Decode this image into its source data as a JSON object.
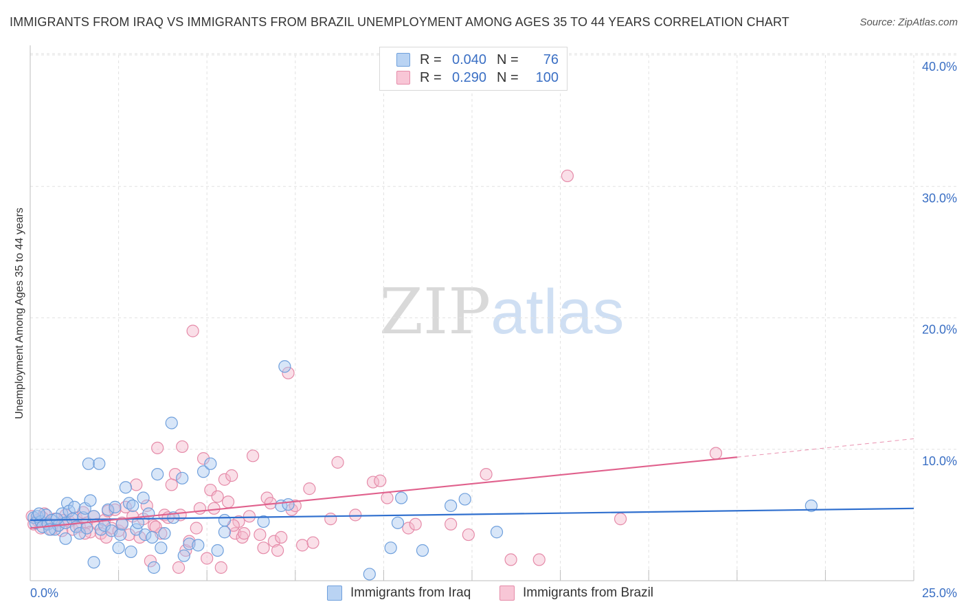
{
  "header": {
    "title": "IMMIGRANTS FROM IRAQ VS IMMIGRANTS FROM BRAZIL UNEMPLOYMENT AMONG AGES 35 TO 44 YEARS CORRELATION CHART",
    "source": "Source: ZipAtlas.com"
  },
  "watermark": {
    "zip": "ZIP",
    "atlas": "atlas"
  },
  "legend": {
    "iraq": {
      "r_label": "R =",
      "r_value": "0.040",
      "n_label": "N =",
      "n_value": "76"
    },
    "brazil": {
      "r_label": "R =",
      "r_value": "0.290",
      "n_label": "N =",
      "n_value": "100"
    }
  },
  "colors": {
    "iraq_fill": "#a9c8f0",
    "iraq_stroke": "#6e9fdc",
    "iraq_line": "#2f6fce",
    "brazil_fill": "#f5b8cb",
    "brazil_stroke": "#e58aa8",
    "brazil_line": "#e0608c",
    "tick_label": "#3a6fc4",
    "grid": "#e2e2e2"
  },
  "chart_data": {
    "type": "scatter",
    "title": "IMMIGRANTS FROM IRAQ VS IMMIGRANTS FROM BRAZIL UNEMPLOYMENT AMONG AGES 35 TO 44 YEARS CORRELATION CHART",
    "xlabel": "",
    "ylabel": "Unemployment Among Ages 35 to 44 years",
    "xlim": [
      0,
      25
    ],
    "ylim": [
      0,
      40
    ],
    "x_tick_labels": [
      "0.0%",
      "25.0%"
    ],
    "y_ticks": [
      10,
      20,
      30,
      40
    ],
    "y_tick_labels": [
      "10.0%",
      "20.0%",
      "30.0%",
      "40.0%"
    ],
    "grid": true,
    "legend_position": "top-center",
    "series": [
      {
        "name": "Immigrants from Iraq",
        "r": 0.04,
        "n": 76,
        "trend": {
          "x": [
            0,
            25
          ],
          "y": [
            4.6,
            5.5
          ]
        },
        "points": [
          [
            0.1,
            4.8
          ],
          [
            0.15,
            4.4
          ],
          [
            0.2,
            4.9
          ],
          [
            0.3,
            4.5
          ],
          [
            0.35,
            4.1
          ],
          [
            0.45,
            5.0
          ],
          [
            0.5,
            4.3
          ],
          [
            0.6,
            4.6
          ],
          [
            0.7,
            3.9
          ],
          [
            0.8,
            4.2
          ],
          [
            0.9,
            5.1
          ],
          [
            1.0,
            4.4
          ],
          [
            1.0,
            3.2
          ],
          [
            1.05,
            5.9
          ],
          [
            1.1,
            5.3
          ],
          [
            1.2,
            4.7
          ],
          [
            1.25,
            5.6
          ],
          [
            1.3,
            4.1
          ],
          [
            1.4,
            3.6
          ],
          [
            1.5,
            4.8
          ],
          [
            1.55,
            5.5
          ],
          [
            1.65,
            8.9
          ],
          [
            1.7,
            6.1
          ],
          [
            1.8,
            4.9
          ],
          [
            1.8,
            1.4
          ],
          [
            1.95,
            8.9
          ],
          [
            2.0,
            3.9
          ],
          [
            2.1,
            4.2
          ],
          [
            2.2,
            5.4
          ],
          [
            2.3,
            3.8
          ],
          [
            2.4,
            5.6
          ],
          [
            2.5,
            2.5
          ],
          [
            2.55,
            3.5
          ],
          [
            2.6,
            4.3
          ],
          [
            2.7,
            7.1
          ],
          [
            2.8,
            5.9
          ],
          [
            2.85,
            2.2
          ],
          [
            2.9,
            5.7
          ],
          [
            3.0,
            3.9
          ],
          [
            3.2,
            6.3
          ],
          [
            3.25,
            3.5
          ],
          [
            3.35,
            5.1
          ],
          [
            3.45,
            3.3
          ],
          [
            3.5,
            1.0
          ],
          [
            3.6,
            8.1
          ],
          [
            3.7,
            2.5
          ],
          [
            3.8,
            3.6
          ],
          [
            4.0,
            12.0
          ],
          [
            4.05,
            4.8
          ],
          [
            4.3,
            7.8
          ],
          [
            4.35,
            1.9
          ],
          [
            4.5,
            2.8
          ],
          [
            4.75,
            2.7
          ],
          [
            4.9,
            8.3
          ],
          [
            5.1,
            8.9
          ],
          [
            5.3,
            2.3
          ],
          [
            5.5,
            4.6
          ],
          [
            5.5,
            3.7
          ],
          [
            6.6,
            4.5
          ],
          [
            7.1,
            5.7
          ],
          [
            7.2,
            16.3
          ],
          [
            7.3,
            5.8
          ],
          [
            9.6,
            0.5
          ],
          [
            10.2,
            2.5
          ],
          [
            10.4,
            4.4
          ],
          [
            10.5,
            6.3
          ],
          [
            11.1,
            2.3
          ],
          [
            11.9,
            5.7
          ],
          [
            12.3,
            6.2
          ],
          [
            13.2,
            3.7
          ],
          [
            22.1,
            5.7
          ],
          [
            0.25,
            5.1
          ],
          [
            0.55,
            3.9
          ],
          [
            0.75,
            4.7
          ],
          [
            1.6,
            4.0
          ],
          [
            3.05,
            4.4
          ]
        ]
      },
      {
        "name": "Immigrants from Brazil",
        "r": 0.29,
        "n": 100,
        "trend": {
          "x": [
            0,
            20
          ],
          "y": [
            4.0,
            9.4
          ]
        },
        "trend_dashed": {
          "x": [
            20,
            25
          ],
          "y": [
            9.4,
            10.8
          ]
        },
        "points": [
          [
            0.05,
            4.9
          ],
          [
            0.1,
            4.3
          ],
          [
            0.2,
            4.6
          ],
          [
            0.3,
            4.0
          ],
          [
            0.4,
            5.1
          ],
          [
            0.5,
            4.4
          ],
          [
            0.6,
            3.9
          ],
          [
            0.7,
            4.7
          ],
          [
            0.8,
            4.2
          ],
          [
            0.9,
            3.8
          ],
          [
            1.0,
            5.0
          ],
          [
            1.1,
            4.5
          ],
          [
            1.2,
            3.9
          ],
          [
            1.3,
            4.8
          ],
          [
            1.4,
            4.1
          ],
          [
            1.5,
            5.2
          ],
          [
            1.6,
            4.4
          ],
          [
            1.7,
            3.7
          ],
          [
            1.8,
            4.9
          ],
          [
            1.9,
            4.3
          ],
          [
            2.0,
            3.6
          ],
          [
            2.1,
            4.6
          ],
          [
            2.2,
            5.3
          ],
          [
            2.3,
            4.0
          ],
          [
            2.4,
            5.4
          ],
          [
            2.5,
            3.8
          ],
          [
            2.6,
            4.4
          ],
          [
            2.7,
            5.6
          ],
          [
            2.8,
            3.5
          ],
          [
            2.9,
            4.9
          ],
          [
            3.0,
            7.3
          ],
          [
            3.1,
            3.3
          ],
          [
            3.2,
            4.7
          ],
          [
            3.3,
            5.7
          ],
          [
            3.4,
            1.5
          ],
          [
            3.5,
            4.2
          ],
          [
            3.6,
            10.1
          ],
          [
            3.7,
            3.6
          ],
          [
            3.8,
            5.0
          ],
          [
            3.9,
            4.8
          ],
          [
            4.0,
            7.3
          ],
          [
            4.1,
            8.1
          ],
          [
            4.2,
            1.0
          ],
          [
            4.3,
            10.2
          ],
          [
            4.4,
            2.3
          ],
          [
            4.5,
            3.0
          ],
          [
            4.6,
            19.0
          ],
          [
            4.7,
            4.0
          ],
          [
            4.8,
            5.5
          ],
          [
            4.9,
            9.3
          ],
          [
            5.0,
            1.7
          ],
          [
            5.1,
            6.9
          ],
          [
            5.2,
            5.5
          ],
          [
            5.3,
            6.4
          ],
          [
            5.4,
            1.0
          ],
          [
            5.5,
            7.7
          ],
          [
            5.6,
            6.0
          ],
          [
            5.7,
            8.0
          ],
          [
            5.8,
            3.6
          ],
          [
            5.9,
            4.5
          ],
          [
            6.0,
            3.3
          ],
          [
            6.2,
            4.9
          ],
          [
            6.3,
            9.5
          ],
          [
            6.5,
            3.5
          ],
          [
            6.6,
            2.5
          ],
          [
            6.7,
            6.3
          ],
          [
            6.8,
            5.9
          ],
          [
            6.9,
            3.0
          ],
          [
            7.0,
            2.3
          ],
          [
            7.1,
            3.3
          ],
          [
            7.3,
            15.8
          ],
          [
            7.4,
            5.4
          ],
          [
            7.5,
            5.7
          ],
          [
            7.7,
            2.7
          ],
          [
            7.9,
            7.0
          ],
          [
            8.0,
            2.9
          ],
          [
            8.5,
            4.7
          ],
          [
            8.7,
            9.0
          ],
          [
            9.2,
            5.0
          ],
          [
            9.7,
            7.5
          ],
          [
            9.9,
            7.6
          ],
          [
            10.1,
            6.3
          ],
          [
            10.7,
            4.0
          ],
          [
            10.9,
            4.3
          ],
          [
            11.9,
            4.3
          ],
          [
            12.4,
            3.5
          ],
          [
            12.9,
            8.1
          ],
          [
            13.6,
            1.6
          ],
          [
            14.4,
            1.6
          ],
          [
            15.2,
            30.8
          ],
          [
            16.7,
            4.7
          ],
          [
            19.4,
            9.7
          ],
          [
            4.25,
            5.0
          ],
          [
            6.05,
            3.6
          ],
          [
            2.15,
            3.3
          ],
          [
            1.55,
            3.6
          ],
          [
            0.95,
            4.6
          ],
          [
            3.55,
            4.1
          ],
          [
            5.75,
            4.2
          ],
          [
            0.35,
            4.8
          ]
        ]
      }
    ]
  },
  "bottom_legend": {
    "iraq_label": "Immigrants from Iraq",
    "brazil_label": "Immigrants from Brazil"
  }
}
